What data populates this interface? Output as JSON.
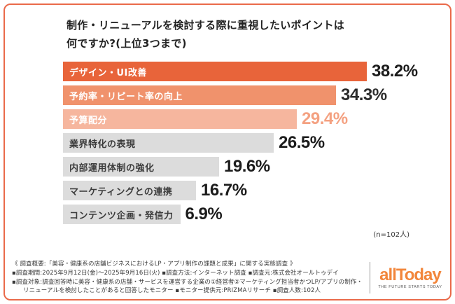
{
  "chart_data": {
    "type": "bar",
    "orientation": "horizontal",
    "title_lines": [
      "制作・リニューアルを検討する際に重視したいポイントは",
      "何ですか?(上位3つまで)"
    ],
    "categories": [
      "デザイン・UI改善",
      "予約率・リピート率の向上",
      "予算配分",
      "業界特化の表現",
      "内部運用体制の強化",
      "マーケティングとの連携",
      "コンテンツ企画・発信力"
    ],
    "values": [
      38.2,
      34.3,
      29.4,
      26.5,
      19.6,
      16.7,
      6.9
    ],
    "value_labels": [
      "38.2%",
      "34.3%",
      "29.4%",
      "26.5%",
      "19.6%",
      "16.7%",
      "6.9%"
    ],
    "bar_colors": [
      "#e8643a",
      "#f0926c",
      "#f6b69e",
      "#dcdcdc",
      "#dcdcdc",
      "#dcdcdc",
      "#dcdcdc"
    ],
    "label_colors": [
      "#ffffff",
      "#ffffff",
      "#ffffff",
      "#3c3c3c",
      "#3c3c3c",
      "#3c3c3c",
      "#3c3c3c"
    ],
    "value_colors": [
      "#1c1c1c",
      "#2b2b2b",
      "#f4a181",
      "#1c1c1c",
      "#1c1c1c",
      "#1c1c1c",
      "#1c1c1c"
    ],
    "xlim": [
      0,
      38.2
    ],
    "legend": "none",
    "grid": "off",
    "sample_note": "(n=102人)"
  },
  "footer": {
    "lines": [
      "《 調査概要:「美容・健康系の店舗ビジネスにおけるLP・アプリ制作の課題と成果」に関する実態調査 》",
      "▪調査期間:2025年9月12日(金)〜2025年9月16日(火)  ▪調査方法:インターネット調査  ▪調査元:株式会社オールトゥデイ",
      "▪調査対象:調査回答時に美容・健康系の店舗・サービスを運営する企業の①経営者②マーケティング担当者かつLP/アプリの制作・",
      "リニューアルを検討したことがあると回答したモニター  ▪モニター提供元:PRIZMAリサーチ  ▪調査人数:102人"
    ]
  },
  "logo": {
    "text": "allToday",
    "tagline": "THE FUTURE STARTS TODAY"
  },
  "colors": {
    "frame_border": "#ea6a4a",
    "accent_bar_1": "#e8643a",
    "accent_bar_2": "#f0926c",
    "accent_bar_3": "#f6b69e",
    "neutral_bar": "#dcdcdc",
    "logo_orange": "#f2863b"
  }
}
